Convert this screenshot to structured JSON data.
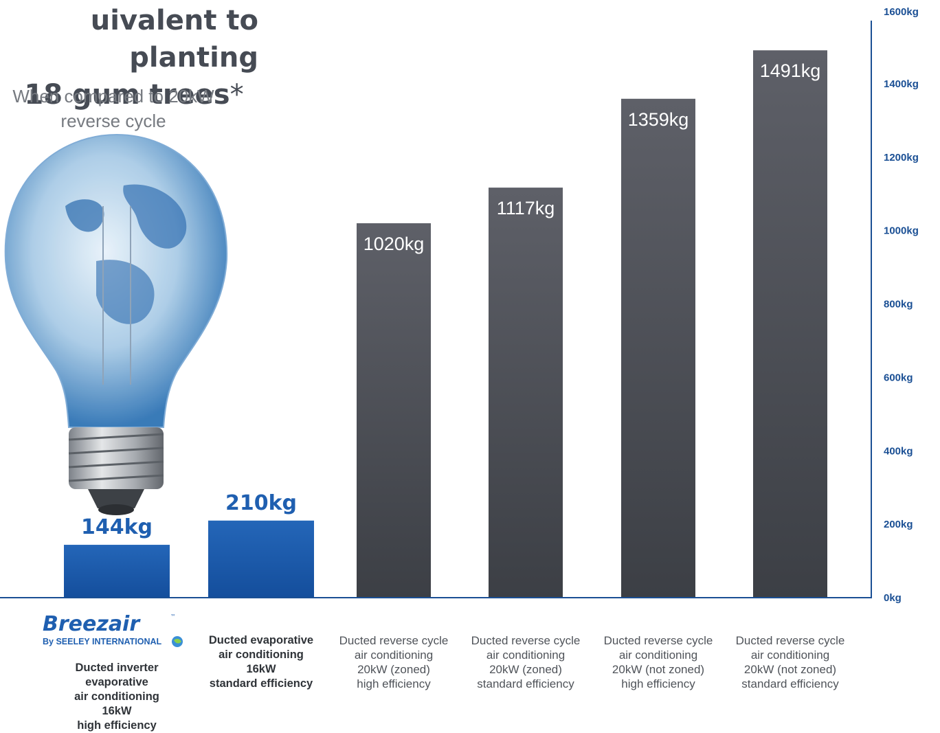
{
  "headline": {
    "line1": "uivalent to planting",
    "line2": "18 gum trees",
    "asterisk": "*"
  },
  "subheading": {
    "line1": "When compared to 20kW",
    "line2": "reverse cycle"
  },
  "logo": {
    "brand": "Breezair",
    "byline": "By SEELEY INTERNATIONAL",
    "tm": "™"
  },
  "chart_data": {
    "type": "bar",
    "yunit": "kg",
    "ylim": [
      0,
      1600
    ],
    "yticks": [
      0,
      200,
      400,
      600,
      800,
      1000,
      1200,
      1400,
      1600
    ],
    "ytick_labels": [
      "0kg",
      "200kg",
      "400kg",
      "600kg",
      "800kg",
      "1000kg",
      "1200kg",
      "1400kg",
      "1600kg"
    ],
    "categories": [
      "Ducted inverter evaporative air conditioning 16kW high efficiency",
      "Ducted evaporative air conditioning 16kW standard efficiency",
      "Ducted reverse cycle air conditioning 20kW (zoned) high efficiency",
      "Ducted reverse cycle air conditioning 20kW (zoned) standard efficiency",
      "Ducted reverse cycle air conditioning 20kW (not zoned) high efficiency",
      "Ducted reverse cycle air conditioning 20kW (not zoned) standard efficiency"
    ],
    "category_lines": [
      [
        "Ducted inverter evaporative",
        "air conditioning",
        "16kW",
        "high efficiency"
      ],
      [
        "Ducted evaporative",
        "air conditioning",
        "16kW",
        "standard efficiency"
      ],
      [
        "Ducted reverse cycle",
        "air conditioning",
        "20kW (zoned)",
        "high efficiency"
      ],
      [
        "Ducted reverse cycle",
        "air conditioning",
        "20kW (zoned)",
        "standard efficiency"
      ],
      [
        "Ducted reverse cycle",
        "air conditioning",
        "20kW (not zoned)",
        "high efficiency"
      ],
      [
        "Ducted reverse cycle",
        "air conditioning",
        "20kW (not zoned)",
        "standard efficiency"
      ]
    ],
    "values": [
      144,
      210,
      1020,
      1117,
      1359,
      1491
    ],
    "value_labels": [
      "144kg",
      "210kg",
      "1020kg",
      "1117kg",
      "1359kg",
      "1491kg"
    ],
    "colors": [
      "#1f5fb0",
      "#1f5fb0",
      "#55585e",
      "#55585e",
      "#55585e",
      "#55585e"
    ],
    "accent_color": "#1f5fb0",
    "axis_color": "#1a4f94",
    "grid": false
  }
}
